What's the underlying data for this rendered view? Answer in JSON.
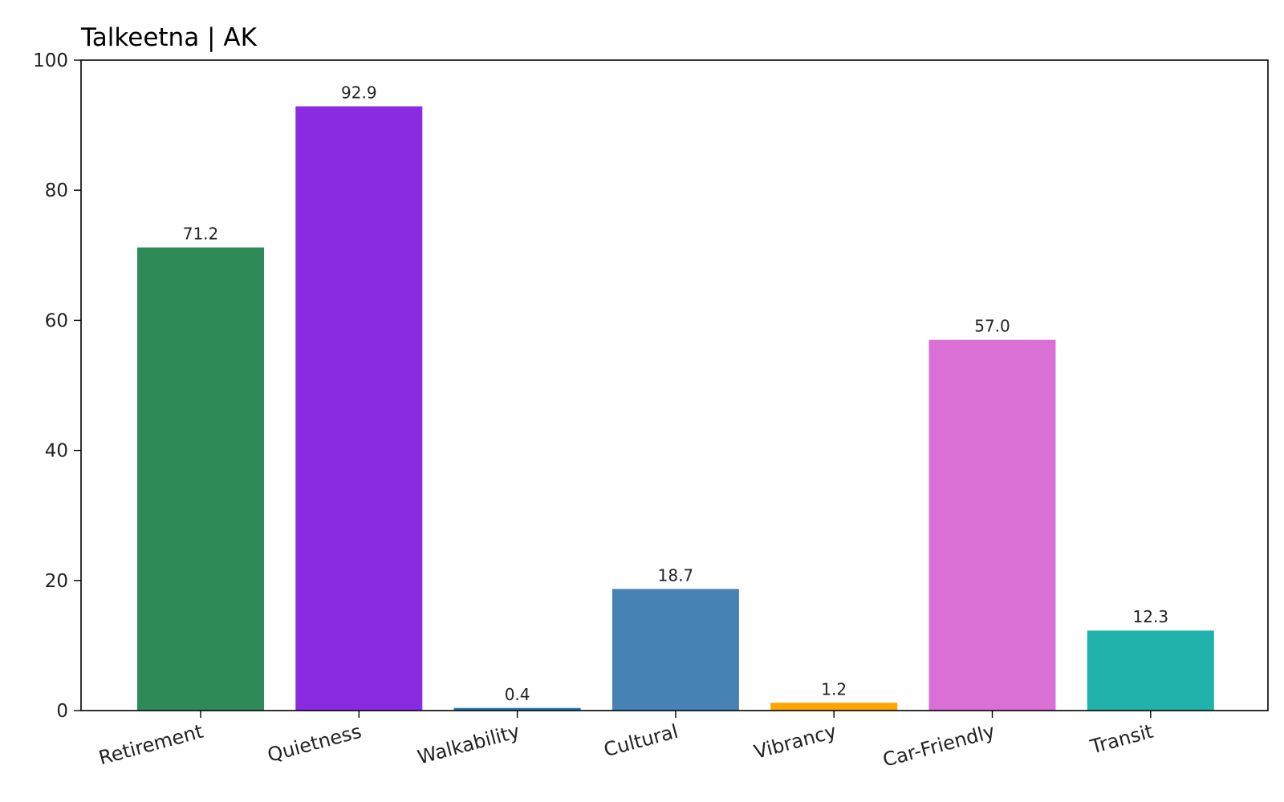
{
  "chart_data": {
    "type": "bar",
    "title": "Talkeetna | AK",
    "xlabel": "",
    "ylabel": "",
    "ylim": [
      0,
      100
    ],
    "yticks": [
      0,
      20,
      40,
      60,
      80,
      100
    ],
    "grid": false,
    "categories": [
      "Retirement",
      "Quietness",
      "Walkability",
      "Cultural",
      "Vibrancy",
      "Car-Friendly",
      "Transit"
    ],
    "values": [
      71.2,
      92.9,
      0.4,
      18.7,
      1.2,
      57.0,
      12.3
    ],
    "value_labels": [
      "71.2",
      "92.9",
      "0.4",
      "18.7",
      "1.2",
      "57.0",
      "12.3"
    ],
    "colors": [
      "#2e8b57",
      "#8a2be2",
      "#1f77b4",
      "#4682b4",
      "#ffa500",
      "#da70d6",
      "#20b2aa"
    ]
  }
}
